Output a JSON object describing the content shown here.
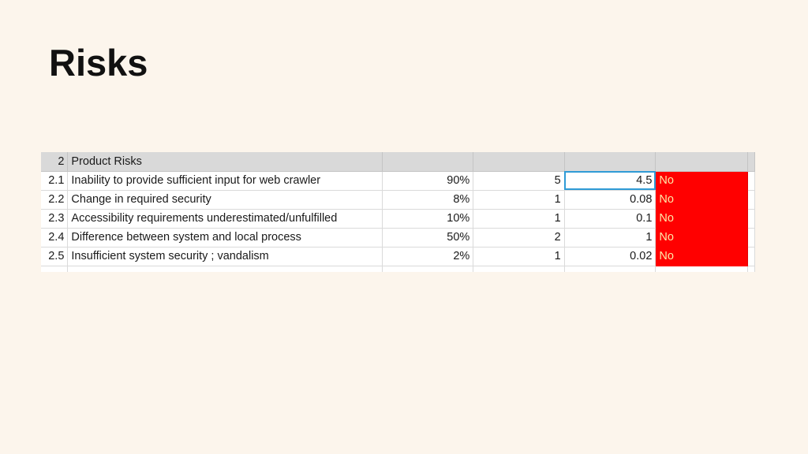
{
  "slide": {
    "title": "Risks"
  },
  "sheet": {
    "header": {
      "id": "2",
      "label": "Product Risks"
    },
    "rows": [
      {
        "id": "2.1",
        "description": "Inability to provide sufficient input for web crawler",
        "probability": "90%",
        "impact": "5",
        "score": "4.5",
        "status": "No"
      },
      {
        "id": "2.2",
        "description": "Change in required security",
        "probability": "8%",
        "impact": "1",
        "score": "0.08",
        "status": "No"
      },
      {
        "id": "2.3",
        "description": "Accessibility requirements underestimated/unfulfilled",
        "probability": "10%",
        "impact": "1",
        "score": "0.1",
        "status": "No"
      },
      {
        "id": "2.4",
        "description": "Difference between system and local process",
        "probability": "50%",
        "impact": "2",
        "score": "1",
        "status": "No"
      },
      {
        "id": "2.5",
        "description": "Insufficient system security ; vandalism",
        "probability": "2%",
        "impact": "1",
        "score": "0.02",
        "status": "No"
      }
    ],
    "selected_cell": "2.1-score",
    "colors": {
      "status_fill": "#ff0000",
      "status_text": "#ffe9a8",
      "header_fill": "#d9d9d9",
      "selection": "#2f9bd6"
    }
  }
}
